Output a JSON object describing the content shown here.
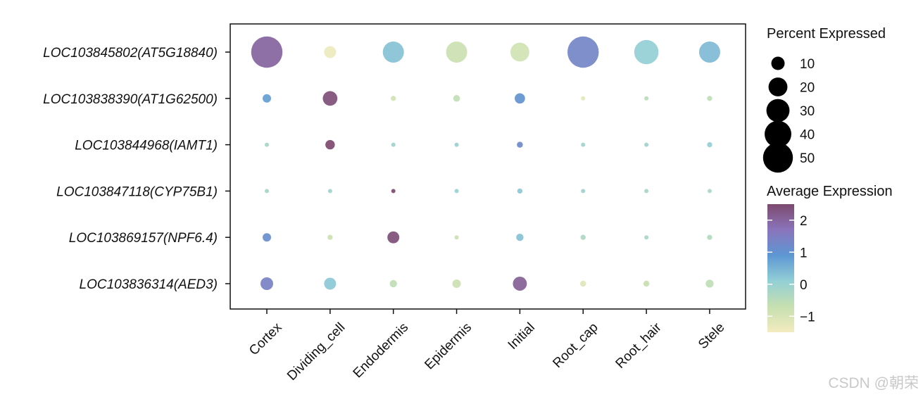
{
  "chart_data": {
    "type": "dot",
    "genes": [
      "LOC103845802(AT5G18840)",
      "LOC103838390(AT1G62500)",
      "LOC103844968(IAMT1)",
      "LOC103847118(CYP75B1)",
      "LOC103869157(NPF6.4)",
      "LOC103836314(AED3)"
    ],
    "cell_types": [
      "Cortex",
      "Dividing_cell",
      "Endodermis",
      "Epidermis",
      "Initial",
      "Root_cap",
      "Root_hair",
      "Stele"
    ],
    "percent_expressed": [
      [
        55,
        8,
        25,
        25,
        20,
        55,
        33,
        25
      ],
      [
        4,
        12,
        1.5,
        2.5,
        6,
        1,
        1,
        1.5
      ],
      [
        1,
        5,
        1,
        1,
        2,
        1,
        1,
        1.5
      ],
      [
        1,
        1,
        1,
        1,
        1.5,
        1,
        1,
        1
      ],
      [
        4,
        1.5,
        8,
        1,
        3,
        1.5,
        1,
        1.5
      ],
      [
        9,
        8,
        3,
        4,
        11,
        2,
        2,
        3.5
      ]
    ],
    "average_expression": [
      [
        2.0,
        -1.4,
        0.3,
        -0.8,
        -0.9,
        1.3,
        0.1,
        0.4
      ],
      [
        0.8,
        2.4,
        -0.9,
        -0.6,
        1.0,
        -1.2,
        -0.5,
        -0.6
      ],
      [
        -0.2,
        2.5,
        -0.1,
        0.0,
        1.2,
        -0.1,
        -0.1,
        0.1
      ],
      [
        -0.2,
        -0.1,
        2.5,
        0.0,
        0.2,
        -0.1,
        -0.2,
        -0.3
      ],
      [
        1.1,
        -0.8,
        2.4,
        -0.8,
        0.3,
        -0.3,
        -0.2,
        -0.4
      ],
      [
        1.4,
        0.2,
        -0.6,
        -0.8,
        2.1,
        -1.1,
        -0.7,
        -0.6
      ]
    ],
    "size_legend": {
      "title": "Percent Expressed",
      "values": [
        10,
        20,
        30,
        40,
        50
      ],
      "labels": [
        "10",
        "20",
        "30",
        "40",
        "50"
      ]
    },
    "color_legend": {
      "title": "Average Expression",
      "range": [
        -1.5,
        2.5
      ],
      "ticks": [
        2,
        1,
        0,
        -1
      ],
      "tick_labels": [
        "2",
        "1",
        "0",
        "−1"
      ],
      "colors": [
        "#f3ebbf",
        "#c6e0b0",
        "#93cfd6",
        "#5d97d3",
        "#8a74bb",
        "#7d4a6e"
      ]
    },
    "grid": false
  },
  "watermark": "CSDN @朝荣"
}
